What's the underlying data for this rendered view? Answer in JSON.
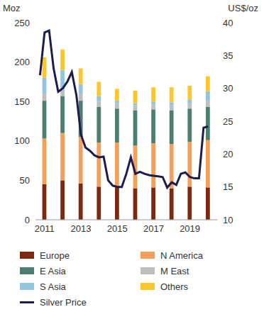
{
  "chart_data": {
    "type": "bar",
    "stacked": true,
    "y_label": "Moz",
    "y2_label": "US$/oz",
    "x": [
      2011,
      2012,
      2013,
      2014,
      2015,
      2016,
      2017,
      2018,
      2019,
      2020
    ],
    "xlim": [
      2010.5,
      2020.5
    ],
    "xticks": [
      2011,
      2013,
      2015,
      2017,
      2019
    ],
    "ylim": [
      0,
      250
    ],
    "yticks": [
      0,
      50,
      100,
      150,
      200,
      250
    ],
    "y2lim": [
      10,
      40
    ],
    "y2ticks": [
      10,
      15,
      20,
      25,
      30,
      35,
      40
    ],
    "series": [
      {
        "name": "Europe",
        "color": "#7b2a10",
        "values": [
          45,
          50,
          46,
          42,
          41,
          40,
          41,
          40,
          42,
          41
        ]
      },
      {
        "name": "N America",
        "color": "#f4a05a",
        "values": [
          58,
          60,
          59,
          56,
          57,
          54,
          56,
          56,
          57,
          60
        ]
      },
      {
        "name": "E Asia",
        "color": "#4b8071",
        "values": [
          48,
          47,
          46,
          45,
          43,
          45,
          43,
          43,
          42,
          42
        ]
      },
      {
        "name": "M East",
        "color": "#bfbfbf",
        "values": [
          9,
          8,
          9,
          7,
          6,
          6,
          6,
          6,
          6,
          8
        ]
      },
      {
        "name": "S Asia",
        "color": "#92c5de",
        "values": [
          20,
          25,
          12,
          7,
          4,
          3,
          4,
          4,
          5,
          12
        ]
      },
      {
        "name": "Others",
        "color": "#fcc72c",
        "values": [
          26,
          26,
          20,
          18,
          15,
          16,
          18,
          19,
          18,
          19
        ]
      },
      {
        "name": "Silver Price",
        "color": "#1c1c4e",
        "type": "line",
        "axis": "y2",
        "x": [
          2010.75,
          2011,
          2011.25,
          2011.5,
          2011.75,
          2012,
          2012.25,
          2012.5,
          2012.75,
          2013,
          2013.25,
          2013.5,
          2013.75,
          2014,
          2014.25,
          2014.5,
          2014.75,
          2015,
          2015.25,
          2015.5,
          2015.75,
          2016,
          2016.25,
          2016.5,
          2016.75,
          2017,
          2017.25,
          2017.5,
          2017.75,
          2018,
          2018.25,
          2018.5,
          2018.75,
          2019,
          2019.25,
          2019.5,
          2019.75,
          2020
        ],
        "values": [
          32,
          38.5,
          38.8,
          33,
          29.5,
          30,
          31,
          32.5,
          29,
          23,
          21,
          20.5,
          19.8,
          19.5,
          19.6,
          16,
          15.2,
          15,
          15,
          17,
          19.5,
          17,
          17.3,
          17,
          16.8,
          16.7,
          16.6,
          16.5,
          14.9,
          15.7,
          15.3,
          17,
          17.2,
          16.5,
          16.3,
          16.3,
          24,
          24.2
        ]
      }
    ]
  }
}
